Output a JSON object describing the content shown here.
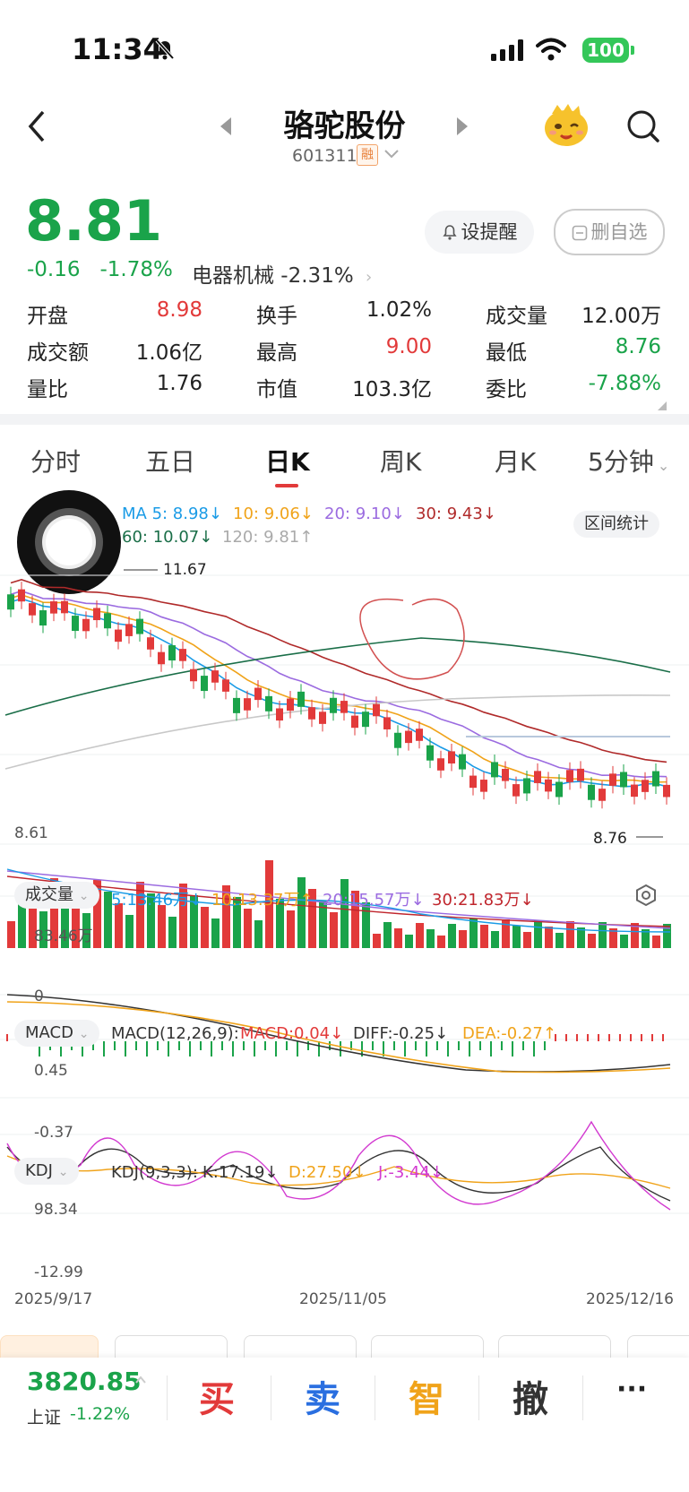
{
  "status": {
    "time": "11:34",
    "battery": "100"
  },
  "header": {
    "title": "骆驼股份",
    "code": "601311",
    "badge": "融"
  },
  "quote": {
    "price": "8.81",
    "change": "-0.16",
    "change_pct": "-1.78%",
    "sector": "电器机械 -2.31%",
    "alert_label": "设提醒",
    "remove_label": "删自选",
    "cells": [
      {
        "label": "开盘",
        "value": "8.98",
        "color": "#e23a3a"
      },
      {
        "label": "换手",
        "value": "1.02%",
        "color": "#222"
      },
      {
        "label": "成交量",
        "value": "12.00万",
        "color": "#222"
      },
      {
        "label": "成交额",
        "value": "1.06亿",
        "color": "#222"
      },
      {
        "label": "最高",
        "value": "9.00",
        "color": "#e23a3a"
      },
      {
        "label": "最低",
        "value": "8.76",
        "color": "#1aa34a"
      },
      {
        "label": "量比",
        "value": "1.76",
        "color": "#222"
      },
      {
        "label": "市值",
        "value": "103.3亿",
        "color": "#222"
      },
      {
        "label": "委比",
        "value": "-7.88%",
        "color": "#1aa34a"
      }
    ]
  },
  "tabs": [
    "分时",
    "五日",
    "日K",
    "周K",
    "月K",
    "5分钟"
  ],
  "active_tab": "日K",
  "kline": {
    "ma_legend": [
      {
        "text": "MA 5: 8.98↓",
        "color": "#1a9be6"
      },
      {
        "text": "10: 9.06↓",
        "color": "#f0a31a"
      },
      {
        "text": "20: 9.10↓",
        "color": "#9b6be0"
      },
      {
        "text": "30: 9.43↓",
        "color": "#b02a2a"
      },
      {
        "text": "60: 10.07↓",
        "color": "#1a6e48"
      },
      {
        "text": "120: 9.81↑",
        "color": "#aaaaaa"
      }
    ],
    "range_btn": "区间统计",
    "high_label": "11.67",
    "low_label": "8.76",
    "axis_bottom": "8.61"
  },
  "volume": {
    "pill": "成交量",
    "legend": [
      {
        "text": "5:13.46万↓",
        "color": "#1a9be6"
      },
      {
        "text": "10:13.37万↑",
        "color": "#f0a31a"
      },
      {
        "text": "20:15.57万↓",
        "color": "#9b6be0"
      },
      {
        "text": "30:21.83万↓",
        "color": "#c0262d"
      }
    ],
    "max_label": "83.46万",
    "zero_label": "0"
  },
  "macd": {
    "pill": "MACD",
    "legend": [
      {
        "text": "MACD(12,26,9):",
        "color": "#333333"
      },
      {
        "text": "MACD:0.04↓",
        "color": "#e23a3a"
      },
      {
        "text": "DIFF:-0.25↓",
        "color": "#333333"
      },
      {
        "text": "DEA:-0.27↑",
        "color": "#f0a31a"
      }
    ],
    "top_label": "0.45",
    "bottom_label": "-0.37"
  },
  "kdj": {
    "pill": "KDJ",
    "legend": [
      {
        "text": "KDJ(9,3,3):",
        "color": "#333333"
      },
      {
        "text": "K:17.19↓",
        "color": "#333333"
      },
      {
        "text": "D:27.50↓",
        "color": "#f0a31a"
      },
      {
        "text": "J:-3.44↓",
        "color": "#d23ad0"
      }
    ],
    "top_label": "98.34",
    "bottom_label": "-12.99"
  },
  "dates": [
    "2025/9/17",
    "2025/11/05",
    "2025/12/16"
  ],
  "bottom_bar": {
    "index_value": "3820.85",
    "index_name": "上证",
    "index_change": "-1.22%",
    "buy": "买",
    "sell": "卖",
    "smart": "智",
    "cancel": "撤",
    "more": "···"
  }
}
